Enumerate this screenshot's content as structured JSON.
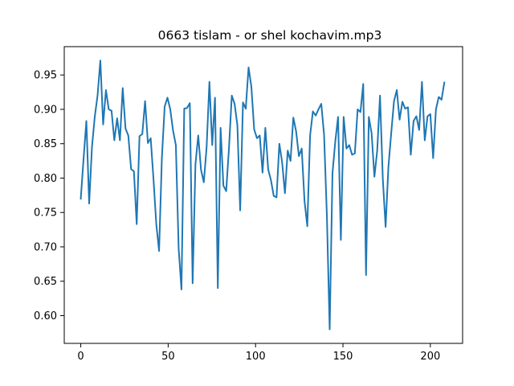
{
  "chart_data": {
    "type": "line",
    "title": "0663 tislam - or shel kochavim.mp3",
    "xlabel": "",
    "ylabel": "",
    "xlim": [
      -9.45,
      218.45
    ],
    "ylim": [
      0.5596,
      0.9912
    ],
    "grid": false,
    "line_color": "#1f77b4",
    "x_ticks": [
      {
        "value": 0,
        "label": "0"
      },
      {
        "value": 50,
        "label": "50"
      },
      {
        "value": 100,
        "label": "100"
      },
      {
        "value": 150,
        "label": "150"
      },
      {
        "value": 200,
        "label": "200"
      }
    ],
    "y_ticks": [
      {
        "value": 0.6,
        "label": "0.60"
      },
      {
        "value": 0.65,
        "label": "0.65"
      },
      {
        "value": 0.7,
        "label": "0.70"
      },
      {
        "value": 0.75,
        "label": "0.75"
      },
      {
        "value": 0.8,
        "label": "0.80"
      },
      {
        "value": 0.85,
        "label": "0.85"
      },
      {
        "value": 0.9,
        "label": "0.90"
      },
      {
        "value": 0.95,
        "label": "0.95"
      }
    ],
    "series": [
      {
        "values": [
          0.77,
          0.828,
          0.883,
          0.763,
          0.845,
          0.889,
          0.92,
          0.971,
          0.878,
          0.928,
          0.9,
          0.898,
          0.855,
          0.887,
          0.855,
          0.931,
          0.872,
          0.862,
          0.813,
          0.81,
          0.733,
          0.861,
          0.864,
          0.912,
          0.851,
          0.858,
          0.799,
          0.733,
          0.694,
          0.829,
          0.904,
          0.917,
          0.9,
          0.869,
          0.848,
          0.698,
          0.638,
          0.901,
          0.902,
          0.909,
          0.647,
          0.82,
          0.862,
          0.812,
          0.794,
          0.845,
          0.94,
          0.848,
          0.917,
          0.64,
          0.873,
          0.789,
          0.781,
          0.844,
          0.92,
          0.908,
          0.877,
          0.753,
          0.91,
          0.901,
          0.961,
          0.933,
          0.871,
          0.858,
          0.862,
          0.808,
          0.873,
          0.813,
          0.797,
          0.774,
          0.772,
          0.85,
          0.823,
          0.778,
          0.84,
          0.825,
          0.888,
          0.868,
          0.832,
          0.843,
          0.767,
          0.73,
          0.862,
          0.897,
          0.891,
          0.9,
          0.908,
          0.863,
          0.746,
          0.58,
          0.807,
          0.853,
          0.889,
          0.71,
          0.889,
          0.843,
          0.848,
          0.834,
          0.836,
          0.9,
          0.896,
          0.937,
          0.659,
          0.889,
          0.865,
          0.802,
          0.84,
          0.92,
          0.799,
          0.729,
          0.816,
          0.865,
          0.912,
          0.928,
          0.885,
          0.911,
          0.901,
          0.903,
          0.834,
          0.883,
          0.89,
          0.87,
          0.94,
          0.855,
          0.89,
          0.893,
          0.829,
          0.9,
          0.918,
          0.914,
          0.939
        ],
        "x_spacing": 1.6
      }
    ]
  }
}
